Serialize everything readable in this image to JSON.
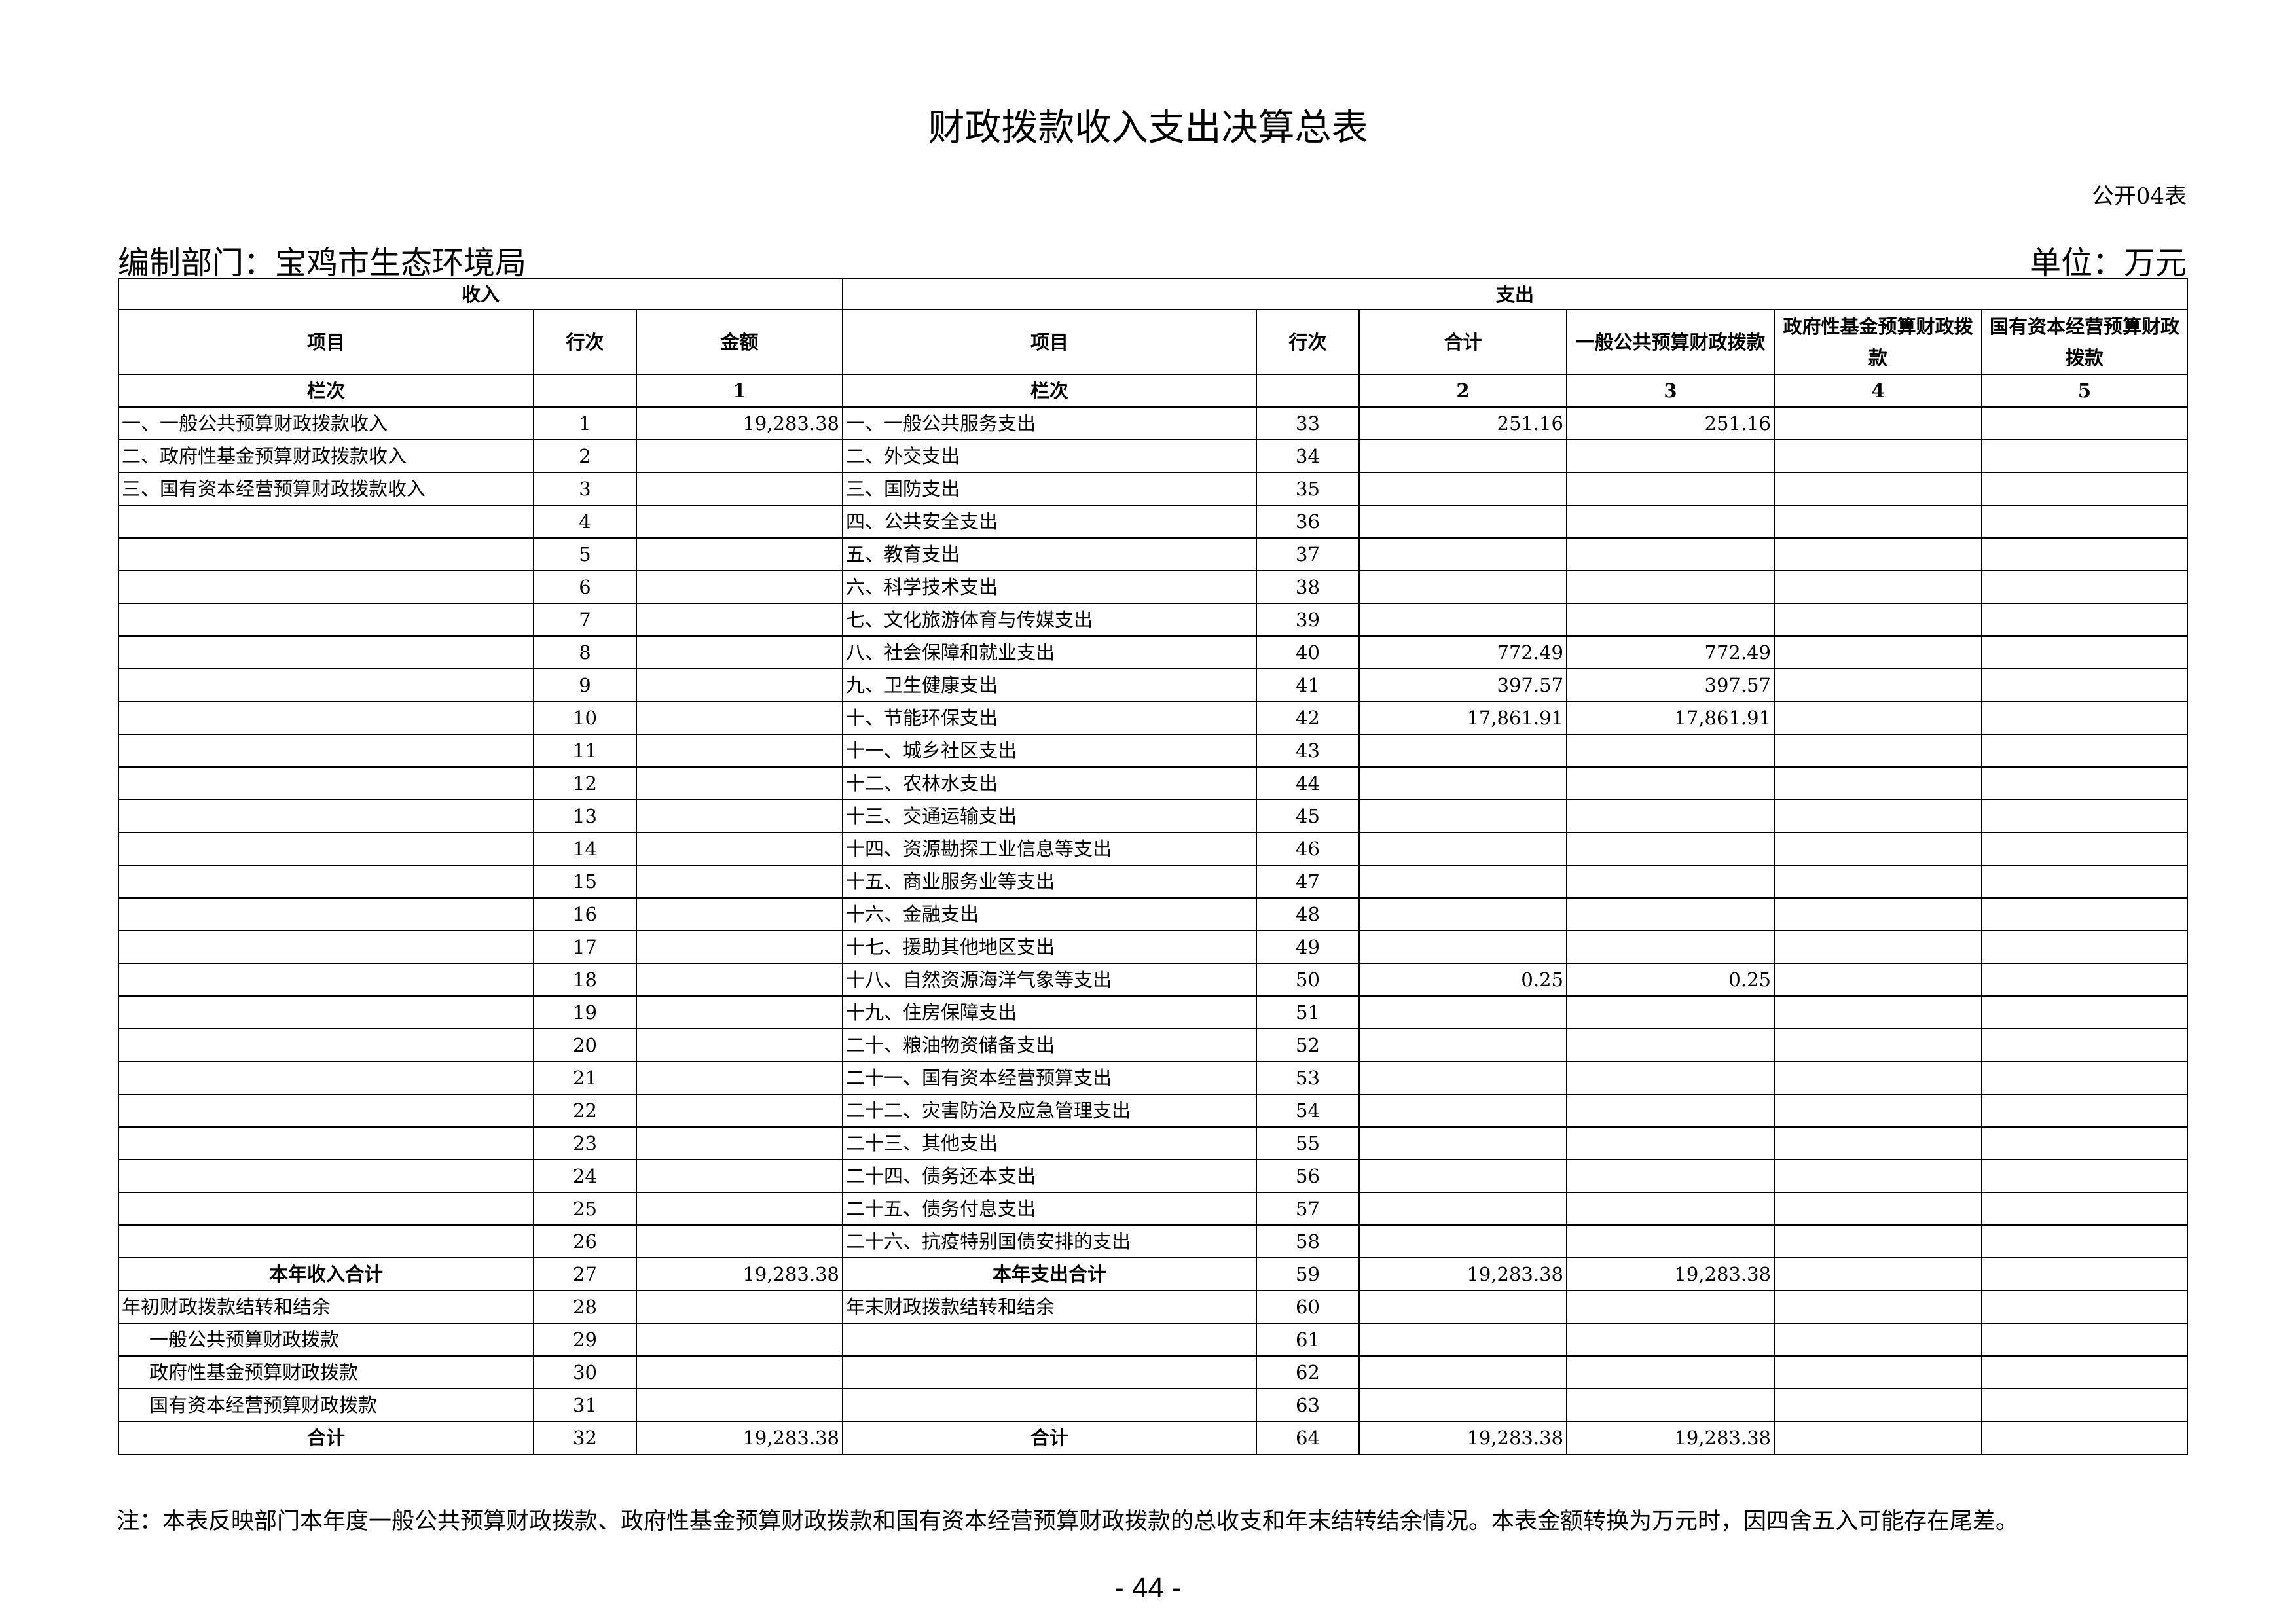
{
  "header": {
    "title": "财政拨款收入支出决算总表",
    "code": "公开04表",
    "department": "编制部门：宝鸡市生态环境局",
    "unit": "单位：万元"
  },
  "table": {
    "sections": [
      "收入",
      "支出"
    ],
    "columns": [
      "项目",
      "行次",
      "金额",
      "项目",
      "行次",
      "合计",
      "一般公共预算财政拨款",
      "政府性基金预算财政拨款",
      "国有资本经营预算财政拨款"
    ],
    "column_numbers": [
      "栏次",
      null,
      "1",
      "栏次",
      null,
      "2",
      "3",
      "4",
      "5"
    ],
    "rows": [
      [
        "一、一般公共预算财政拨款收入",
        1,
        "19,283.38",
        "一、一般公共服务支出",
        33,
        "251.16",
        "251.16",
        null,
        null
      ],
      [
        "二、政府性基金预算财政拨款收入",
        2,
        null,
        "二、外交支出",
        34,
        null,
        null,
        null,
        null
      ],
      [
        "三、国有资本经营预算财政拨款收入",
        3,
        null,
        "三、国防支出",
        35,
        null,
        null,
        null,
        null
      ],
      [
        null,
        4,
        null,
        "四、公共安全支出",
        36,
        null,
        null,
        null,
        null
      ],
      [
        null,
        5,
        null,
        "五、教育支出",
        37,
        null,
        null,
        null,
        null
      ],
      [
        null,
        6,
        null,
        "六、科学技术支出",
        38,
        null,
        null,
        null,
        null
      ],
      [
        null,
        7,
        null,
        "七、文化旅游体育与传媒支出",
        39,
        null,
        null,
        null,
        null
      ],
      [
        null,
        8,
        null,
        "八、社会保障和就业支出",
        40,
        "772.49",
        "772.49",
        null,
        null
      ],
      [
        null,
        9,
        null,
        "九、卫生健康支出",
        41,
        "397.57",
        "397.57",
        null,
        null
      ],
      [
        null,
        10,
        null,
        "十、节能环保支出",
        42,
        "17,861.91",
        "17,861.91",
        null,
        null
      ],
      [
        null,
        11,
        null,
        "十一、城乡社区支出",
        43,
        null,
        null,
        null,
        null
      ],
      [
        null,
        12,
        null,
        "十二、农林水支出",
        44,
        null,
        null,
        null,
        null
      ],
      [
        null,
        13,
        null,
        "十三、交通运输支出",
        45,
        null,
        null,
        null,
        null
      ],
      [
        null,
        14,
        null,
        "十四、资源勘探工业信息等支出",
        46,
        null,
        null,
        null,
        null
      ],
      [
        null,
        15,
        null,
        "十五、商业服务业等支出",
        47,
        null,
        null,
        null,
        null
      ],
      [
        null,
        16,
        null,
        "十六、金融支出",
        48,
        null,
        null,
        null,
        null
      ],
      [
        null,
        17,
        null,
        "十七、援助其他地区支出",
        49,
        null,
        null,
        null,
        null
      ],
      [
        null,
        18,
        null,
        "十八、自然资源海洋气象等支出",
        50,
        "0.25",
        "0.25",
        null,
        null
      ],
      [
        null,
        19,
        null,
        "十九、住房保障支出",
        51,
        null,
        null,
        null,
        null
      ],
      [
        null,
        20,
        null,
        "二十、粮油物资储备支出",
        52,
        null,
        null,
        null,
        null
      ],
      [
        null,
        21,
        null,
        "二十一、国有资本经营预算支出",
        53,
        null,
        null,
        null,
        null
      ],
      [
        null,
        22,
        null,
        "二十二、灾害防治及应急管理支出",
        54,
        null,
        null,
        null,
        null
      ],
      [
        null,
        23,
        null,
        "二十三、其他支出",
        55,
        null,
        null,
        null,
        null
      ],
      [
        null,
        24,
        null,
        "二十四、债务还本支出",
        56,
        null,
        null,
        null,
        null
      ],
      [
        null,
        25,
        null,
        "二十五、债务付息支出",
        57,
        null,
        null,
        null,
        null
      ],
      [
        null,
        26,
        null,
        "二十六、抗疫特别国债安排的支出",
        58,
        null,
        null,
        null,
        null
      ],
      [
        "本年收入合计",
        27,
        "19,283.38",
        "本年支出合计",
        59,
        "19,283.38",
        "19,283.38",
        null,
        null
      ],
      [
        "年初财政拨款结转和结余",
        28,
        null,
        "年末财政拨款结转和结余",
        60,
        null,
        null,
        null,
        null
      ],
      [
        "一般公共预算财政拨款",
        29,
        null,
        null,
        61,
        null,
        null,
        null,
        null
      ],
      [
        "政府性基金预算财政拨款",
        30,
        null,
        null,
        62,
        null,
        null,
        null,
        null
      ],
      [
        "国有资本经营预算财政拨款",
        31,
        null,
        null,
        63,
        null,
        null,
        null,
        null
      ],
      [
        "合计",
        32,
        "19,283.38",
        "合计",
        64,
        "19,283.38",
        "19,283.38",
        null,
        null
      ]
    ]
  },
  "footer": {
    "note": "注：本表反映部门本年度一般公共预算财政拨款、政府性基金预算财政拨款和国有资本经营预算财政拨款的总收支和年末结转结余情况。本表金额转换为万元时，因四舍五入可能存在尾差。",
    "page": "- 44 -"
  }
}
